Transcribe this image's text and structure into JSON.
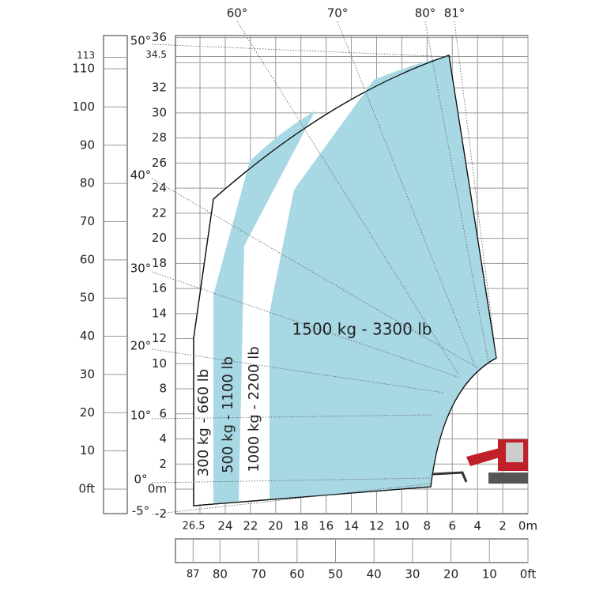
{
  "height_m_labels": [
    "36",
    "34.5",
    "32",
    "30",
    "28",
    "26",
    "24",
    "22",
    "20",
    "18",
    "16",
    "14",
    "12",
    "10",
    "8",
    "6",
    "4",
    "2",
    "0m",
    "-2"
  ],
  "height_ft_labels": [
    "113",
    "110",
    "100",
    "90",
    "80",
    "70",
    "60",
    "50",
    "40",
    "30",
    "20",
    "10",
    "0ft"
  ],
  "reach_m_labels": [
    "26.5",
    "24",
    "22",
    "20",
    "18",
    "16",
    "14",
    "12",
    "10",
    "8",
    "6",
    "4",
    "2",
    "0m"
  ],
  "reach_ft_labels": [
    "87",
    "80",
    "70",
    "60",
    "50",
    "40",
    "30",
    "20",
    "10",
    "0ft"
  ],
  "angle_labels": [
    "50°",
    "40°",
    "30°",
    "20°",
    "10°",
    "0°",
    "-5°",
    "60°",
    "70°",
    "80°",
    "81°"
  ],
  "zones": [
    "1500 kg - 3300 lb",
    "300 kg - 660 lb",
    "500 kg - 1100 lb",
    "1000 kg - 2200 lb"
  ]
}
